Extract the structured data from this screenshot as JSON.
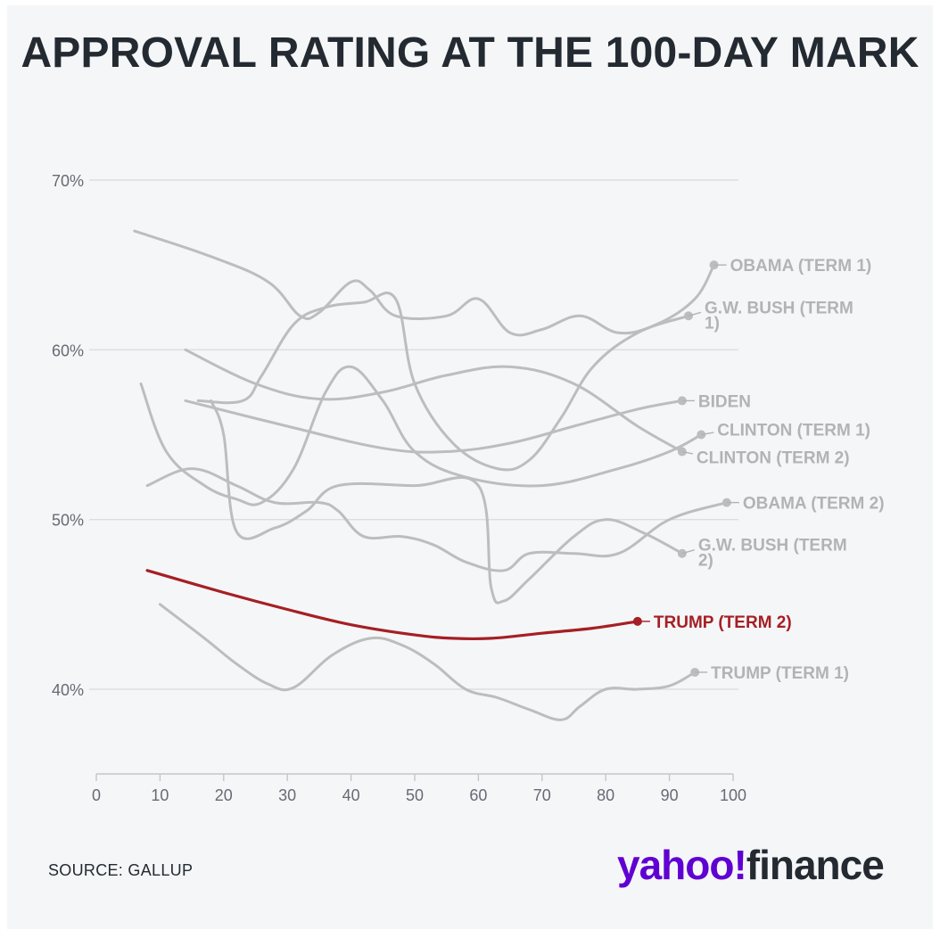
{
  "title": "APPROVAL RATING AT THE 100-DAY MARK",
  "source": "SOURCE: GALLUP",
  "logo": {
    "part1": "yahoo!",
    "part2": "finance"
  },
  "colors": {
    "background": "#f5f6f8",
    "gray_series": "#bdbdbd",
    "gray_label": "#b3b3b3",
    "highlight": "#a51f24",
    "text": "#232a31",
    "brand": "#6001d2"
  },
  "chart_data": {
    "type": "line",
    "title": "APPROVAL RATING AT THE 100-DAY MARK",
    "xlabel": "",
    "ylabel": "",
    "xlim": [
      0,
      100
    ],
    "ylim": [
      35,
      70
    ],
    "x_ticks": [
      0,
      10,
      20,
      30,
      40,
      50,
      60,
      70,
      80,
      90,
      100
    ],
    "x_tick_labels": [
      "0",
      "10",
      "20",
      "30",
      "40",
      "50",
      "60",
      "70",
      "80",
      "90",
      "100"
    ],
    "y_ticks": [
      40,
      50,
      60,
      70
    ],
    "y_tick_labels": [
      "40%",
      "50%",
      "60%",
      "70%"
    ],
    "grid": "horizontal",
    "series": [
      {
        "name": "OBAMA (TERM 1)",
        "highlight": false,
        "points": [
          [
            6,
            67
          ],
          [
            18,
            65.5
          ],
          [
            27,
            64
          ],
          [
            32,
            62
          ],
          [
            35,
            62.2
          ],
          [
            40,
            64
          ],
          [
            43,
            63.5
          ],
          [
            47,
            62
          ],
          [
            55,
            62
          ],
          [
            60,
            63
          ],
          [
            65,
            61
          ],
          [
            70,
            61.2
          ],
          [
            76,
            62
          ],
          [
            82,
            61
          ],
          [
            88,
            61.5
          ],
          [
            94,
            63
          ],
          [
            97,
            65
          ]
        ]
      },
      {
        "name": "G.W. BUSH (TERM 1)",
        "highlight": false,
        "points": [
          [
            16,
            57
          ],
          [
            23,
            57
          ],
          [
            26,
            58.5
          ],
          [
            31,
            61.5
          ],
          [
            36,
            62.5
          ],
          [
            42,
            62.8
          ],
          [
            47,
            63
          ],
          [
            50,
            58
          ],
          [
            56,
            54.5
          ],
          [
            63,
            53
          ],
          [
            68,
            53.5
          ],
          [
            73,
            56
          ],
          [
            78,
            59
          ],
          [
            85,
            61
          ],
          [
            93,
            62
          ]
        ]
      },
      {
        "name": "BIDEN",
        "highlight": false,
        "points": [
          [
            14,
            57
          ],
          [
            30,
            55.5
          ],
          [
            45,
            54.2
          ],
          [
            55,
            54
          ],
          [
            65,
            54.5
          ],
          [
            75,
            55.5
          ],
          [
            85,
            56.5
          ],
          [
            92,
            57
          ]
        ]
      },
      {
        "name": "CLINTON (TERM 1)",
        "highlight": false,
        "points": [
          [
            7,
            58
          ],
          [
            11,
            54
          ],
          [
            17,
            52
          ],
          [
            22,
            51.2
          ],
          [
            26,
            51
          ],
          [
            31,
            53
          ],
          [
            36,
            57.5
          ],
          [
            40,
            59
          ],
          [
            45,
            57
          ],
          [
            50,
            54
          ],
          [
            58,
            52.5
          ],
          [
            70,
            52
          ],
          [
            82,
            53
          ],
          [
            90,
            54
          ],
          [
            95,
            55
          ]
        ]
      },
      {
        "name": "CLINTON (TERM 2)",
        "highlight": false,
        "points": [
          [
            14,
            60
          ],
          [
            25,
            58
          ],
          [
            35,
            57.1
          ],
          [
            45,
            57.5
          ],
          [
            55,
            58.5
          ],
          [
            65,
            59
          ],
          [
            75,
            58
          ],
          [
            85,
            55.5
          ],
          [
            92,
            54
          ]
        ]
      },
      {
        "name": "OBAMA (TERM 2)",
        "highlight": false,
        "points": [
          [
            8,
            52
          ],
          [
            15,
            53
          ],
          [
            22,
            52
          ],
          [
            28,
            51
          ],
          [
            35,
            51
          ],
          [
            38,
            50.5
          ],
          [
            42,
            49
          ],
          [
            48,
            49
          ],
          [
            53,
            48.5
          ],
          [
            58,
            47.5
          ],
          [
            64,
            47
          ],
          [
            68,
            48
          ],
          [
            75,
            48
          ],
          [
            82,
            48
          ],
          [
            90,
            50
          ],
          [
            99,
            51
          ]
        ]
      },
      {
        "name": "G.W. BUSH (TERM 2)",
        "highlight": false,
        "points": [
          [
            18,
            57
          ],
          [
            20,
            55
          ],
          [
            22,
            49.3
          ],
          [
            28,
            49.5
          ],
          [
            33,
            50.5
          ],
          [
            38,
            52
          ],
          [
            50,
            52
          ],
          [
            60,
            52
          ],
          [
            62,
            46
          ],
          [
            64,
            45.2
          ],
          [
            68,
            46.5
          ],
          [
            75,
            49
          ],
          [
            80,
            50
          ],
          [
            86,
            49.2
          ],
          [
            92,
            48
          ]
        ]
      },
      {
        "name": "TRUMP (TERM 2)",
        "highlight": true,
        "points": [
          [
            8,
            47
          ],
          [
            20,
            45.7
          ],
          [
            30,
            44.7
          ],
          [
            40,
            43.8
          ],
          [
            50,
            43.2
          ],
          [
            56,
            43
          ],
          [
            62,
            43
          ],
          [
            70,
            43.3
          ],
          [
            78,
            43.6
          ],
          [
            85,
            44
          ]
        ]
      },
      {
        "name": "TRUMP (TERM 1)",
        "highlight": false,
        "points": [
          [
            10,
            45
          ],
          [
            17,
            43
          ],
          [
            22,
            41.5
          ],
          [
            27,
            40.3
          ],
          [
            31,
            40.1
          ],
          [
            37,
            42
          ],
          [
            43,
            43
          ],
          [
            48,
            42.6
          ],
          [
            53,
            41.5
          ],
          [
            58,
            40
          ],
          [
            63,
            39.5
          ],
          [
            68,
            38.8
          ],
          [
            73,
            38.2
          ],
          [
            76,
            39
          ],
          [
            80,
            40
          ],
          [
            85,
            40
          ],
          [
            90,
            40.2
          ],
          [
            94,
            41
          ]
        ]
      }
    ],
    "end_labels": [
      {
        "series": 0,
        "text": "OBAMA (TERM 1)"
      },
      {
        "series": 1,
        "text": "G.W. BUSH (TERM 1)"
      },
      {
        "series": 2,
        "text": "BIDEN"
      },
      {
        "series": 3,
        "text": "CLINTON (TERM 1)"
      },
      {
        "series": 4,
        "text": "CLINTON (TERM 2)"
      },
      {
        "series": 5,
        "text": "OBAMA (TERM 2)"
      },
      {
        "series": 6,
        "text": "G.W. BUSH (TERM 2)"
      },
      {
        "series": 7,
        "text": "TRUMP (TERM 2)"
      },
      {
        "series": 8,
        "text": "TRUMP (TERM 1)"
      }
    ]
  }
}
